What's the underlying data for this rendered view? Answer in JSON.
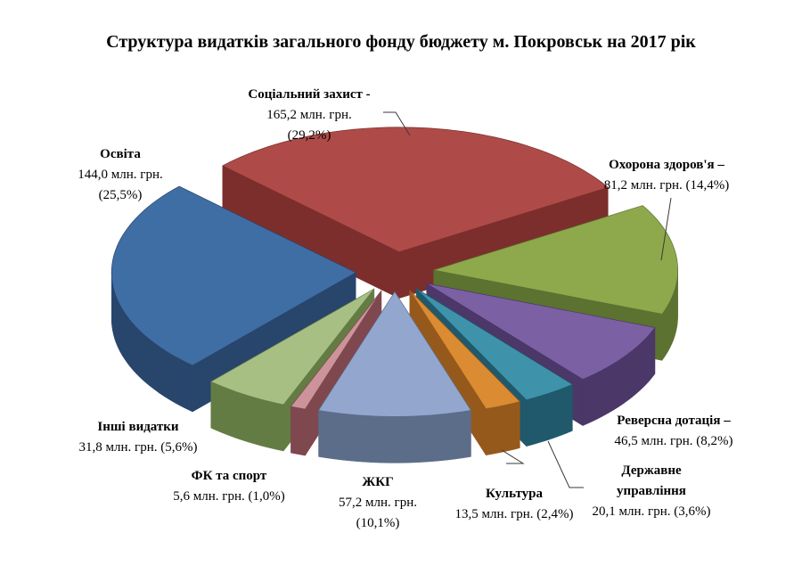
{
  "title": "Структура видатків загального фонду бюджету м. Покровськ на 2017 рік",
  "chart_data": {
    "type": "pie",
    "style": "3d-exploded-pie",
    "title": "Структура видатків загального фонду бюджету м. Покровськ на 2017 рік",
    "unit": "млн. грн.",
    "start_angle_deg": -46.26,
    "legend_position": "none",
    "slices": [
      {
        "name": "Соціальний захист",
        "value_mln": 165.2,
        "pct": 29.2,
        "label_bold": [
          "Соціальний захист -"
        ],
        "label_lines": [
          "165,2 млн. грн.",
          "(29,2%)"
        ],
        "color_top": "#AE4B48",
        "color_side": "#7C2E2C"
      },
      {
        "name": "Охорона здоров'я",
        "value_mln": 81.2,
        "pct": 14.4,
        "label_bold": [
          "Охорона здоров'я –"
        ],
        "label_lines": [
          "81,2 млн. грн. (14,4%)"
        ],
        "color_top": "#8EA94C",
        "color_side": "#5C7231"
      },
      {
        "name": "Реверсна дотація",
        "value_mln": 46.5,
        "pct": 8.2,
        "label_bold": [
          "Реверсна дотація –"
        ],
        "label_lines": [
          "46,5 млн. грн. (8,2%)"
        ],
        "color_top": "#7B61A3",
        "color_side": "#4B3768"
      },
      {
        "name": "Державне управління",
        "value_mln": 20.1,
        "pct": 3.6,
        "label_bold": [
          "Державне",
          "управління"
        ],
        "label_lines": [
          "20,1 млн. грн. (3,6%)"
        ],
        "color_top": "#3E93AB",
        "color_side": "#20596B"
      },
      {
        "name": "Культура",
        "value_mln": 13.5,
        "pct": 2.4,
        "label_bold": [
          "Культура"
        ],
        "label_lines": [
          "13,5 млн. грн. (2,4%)"
        ],
        "color_top": "#DB8B31",
        "color_side": "#96591C"
      },
      {
        "name": "ЖКГ",
        "value_mln": 57.2,
        "pct": 10.1,
        "label_bold": [
          "ЖКГ"
        ],
        "label_lines": [
          "57,2 млн. грн.",
          "(10,1%)"
        ],
        "color_top": "#93A7CE",
        "color_side": "#5C6D89"
      },
      {
        "name": "ФК та спорт",
        "value_mln": 5.6,
        "pct": 1.0,
        "label_bold": [
          "ФК та спорт"
        ],
        "label_lines": [
          "5,6 млн. грн. (1,0%)"
        ],
        "color_top": "#CD939A",
        "color_side": "#7F474E"
      },
      {
        "name": "Інші видатки",
        "value_mln": 31.8,
        "pct": 5.6,
        "label_bold": [
          "Інші видатки"
        ],
        "label_lines": [
          "31,8 млн. грн. (5,6%)"
        ],
        "color_top": "#A7BF83",
        "color_side": "#637C44"
      },
      {
        "name": "Освіта",
        "value_mln": 144.0,
        "pct": 25.5,
        "label_bold": [
          "Освіта"
        ],
        "label_lines": [
          "144,0 млн. грн.",
          "(25,5%)"
        ],
        "color_top": "#3F6EA5",
        "color_side": "#28456C"
      }
    ]
  }
}
